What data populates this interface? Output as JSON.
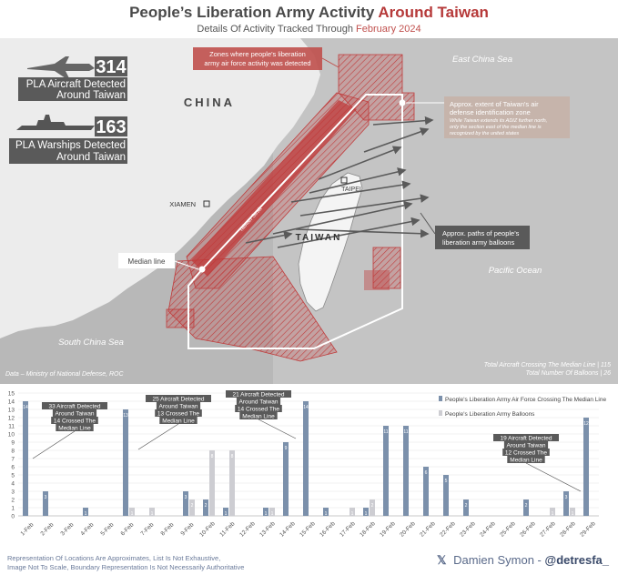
{
  "header": {
    "title_main": "People’s Liberation Army Activity",
    "title_accent": "Around Taiwan",
    "subtitle_main": "Details Of Activity Tracked Through",
    "subtitle_accent": "February 2024"
  },
  "map": {
    "aircraft_count": "314",
    "aircraft_label_1": "PLA Aircraft Detected",
    "aircraft_label_2": "Around Taiwan",
    "warship_count": "163",
    "warship_label_1": "PLA Warships Detected",
    "warship_label_2": "Around Taiwan",
    "label_china": "CHINA",
    "label_taiwan": "TAIWAN",
    "label_xiamen": "XIAMEN",
    "label_taipei": "TAIPEI",
    "label_strait": "Taiwan Strait",
    "label_east_china_sea": "East China Sea",
    "label_pacific": "Pacific Ocean",
    "label_south_china_sea": "South China Sea",
    "callout_zones_1": "Zones where people's liberation",
    "callout_zones_2": "army air force activity was detected",
    "callout_adiz_1": "Approx. extent of Taiwan's air",
    "callout_adiz_2": "defense identification zone",
    "callout_adiz_note_1": "While Taiwan extends its ADIZ further north,",
    "callout_adiz_note_2": "only the section east of the median line is",
    "callout_adiz_note_3": "recognized by the united states",
    "callout_balloons_1": "Approx. paths of people's",
    "callout_balloons_2": "liberation army balloons",
    "callout_median": "Median line",
    "source": "Data – Ministry of National Defense, ROC",
    "total_crossing": "Total Aircraft Crossing The Median Line | 115",
    "total_balloons": "Total Number Of Balloons | 26",
    "colors": {
      "zone_red": "#c03a3a",
      "land": "#ececec",
      "sea": "#b5b5b5",
      "taiwan": "#f4f4f4"
    }
  },
  "chart_data": {
    "type": "bar",
    "categories": [
      "1-Feb",
      "2-Feb",
      "3-Feb",
      "4-Feb",
      "5-Feb",
      "6-Feb",
      "7-Feb",
      "8-Feb",
      "9-Feb",
      "10-Feb",
      "11-Feb",
      "12-Feb",
      "13-Feb",
      "14-Feb",
      "15-Feb",
      "16-Feb",
      "17-Feb",
      "18-Feb",
      "19-Feb",
      "20-Feb",
      "21-Feb",
      "22-Feb",
      "23-Feb",
      "24-Feb",
      "25-Feb",
      "26-Feb",
      "27-Feb",
      "28-Feb",
      "29-Feb"
    ],
    "series": [
      {
        "name": "People's Liberation Army Air Force Crossing The Median Line",
        "color": "#7b90ab",
        "values": [
          14,
          3,
          0,
          1,
          0,
          13,
          0,
          0,
          3,
          2,
          1,
          0,
          1,
          9,
          14,
          1,
          0,
          1,
          11,
          11,
          6,
          5,
          2,
          0,
          0,
          2,
          0,
          3,
          12
        ]
      },
      {
        "name": "People's Liberation Army Balloons",
        "color": "#cdcdd2",
        "values": [
          0,
          0,
          0,
          0,
          0,
          1,
          1,
          0,
          2,
          8,
          8,
          0,
          1,
          0,
          0,
          0,
          1,
          2,
          0,
          0,
          0,
          0,
          0,
          0,
          0,
          0,
          1,
          1,
          0
        ]
      }
    ],
    "ylim": [
      0,
      15
    ],
    "yticks": [
      0,
      1,
      2,
      3,
      4,
      5,
      6,
      7,
      8,
      9,
      10,
      11,
      12,
      13,
      14,
      15
    ],
    "annotations": [
      {
        "line1": "33 Aircraft Detected",
        "line2": "Around Taiwan",
        "line3": "14 Crossed The",
        "line4": "Median Line"
      },
      {
        "line1": "25 Aircraft Detected",
        "line2": "Around Taiwan",
        "line3": "13 Crossed The",
        "line4": "Median Line"
      },
      {
        "line1": "21 Aircraft Detected",
        "line2": "Around Taiwan",
        "line3": "14 Crossed The",
        "line4": "Median Line"
      },
      {
        "line1": "19 Aircraft Detected",
        "line2": "Around Taiwan",
        "line3": "12 Crossed The",
        "line4": "Median Line"
      }
    ]
  },
  "footer": {
    "note_1": "Representation Of Locations Are Approximates, List Is Not Exhaustive,",
    "note_2": "Image Not To Scale, Boundary Representation Is Not Necessarily Authoritative",
    "credit_name": "Damien Symon -",
    "credit_handle": "@detresfa_"
  }
}
